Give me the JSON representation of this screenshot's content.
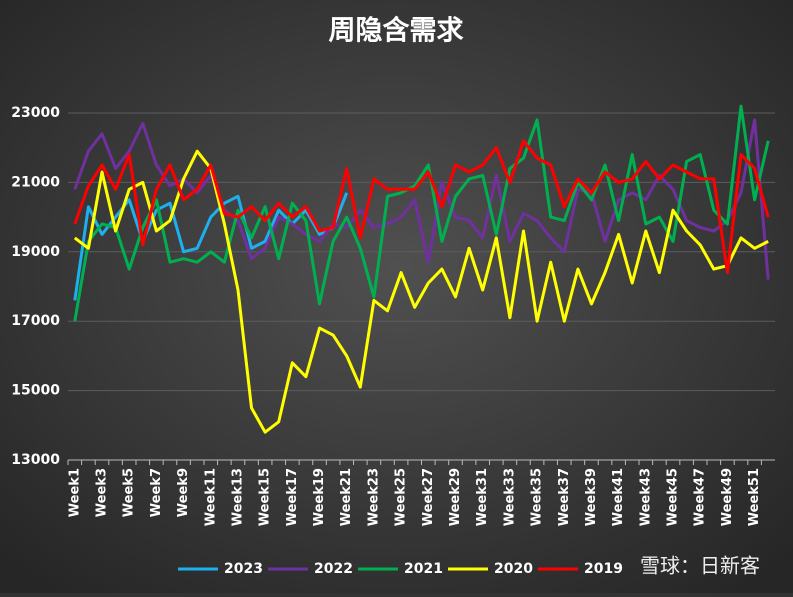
{
  "chart_data": {
    "type": "line",
    "title": "周隐含需求",
    "watermark": "雪球：日新客",
    "categories": [
      "Week1",
      null,
      "Week3",
      null,
      "Week5",
      null,
      "Week7",
      null,
      "Week9",
      null,
      "Week11",
      null,
      "Week13",
      null,
      "Week15",
      null,
      "Week17",
      null,
      "Week19",
      null,
      "Week21",
      null,
      "Week23",
      null,
      "Week25",
      null,
      "Week27",
      null,
      "Week29",
      null,
      "Week31",
      null,
      "Week33",
      null,
      "Week35",
      null,
      "Week37",
      null,
      "Week39",
      null,
      "Week41",
      null,
      "Week43",
      null,
      "Week45",
      null,
      "Week47",
      null,
      "Week49",
      null,
      "Week51",
      null
    ],
    "ylim": [
      13000,
      23500
    ],
    "yticks": [
      13000,
      15000,
      17000,
      19000,
      21000,
      23000
    ],
    "grid": true,
    "series": [
      {
        "name": "2023",
        "color": "#1cb0ee",
        "values": [
          17600,
          20300,
          19500,
          20000,
          20500,
          19300,
          20200,
          20400,
          19000,
          19100,
          20000,
          20400,
          20600,
          19100,
          19300,
          20200,
          19800,
          20200,
          19500,
          19700,
          20700,
          null,
          null,
          null,
          null,
          null,
          null,
          null,
          null,
          null,
          null,
          null,
          null,
          null,
          null,
          null,
          null,
          null,
          null,
          null,
          null,
          null,
          null,
          null,
          null,
          null,
          null,
          null,
          null,
          null,
          null,
          null
        ]
      },
      {
        "name": "2022",
        "color": "#7030a0",
        "values": [
          20800,
          21900,
          22400,
          21400,
          21900,
          22700,
          21500,
          20900,
          21100,
          20700,
          21200,
          20200,
          19900,
          18800,
          19100,
          20000,
          19800,
          19500,
          19300,
          19800,
          19700,
          20200,
          19700,
          19800,
          20000,
          20500,
          18700,
          21000,
          20000,
          19900,
          19400,
          21200,
          19300,
          20100,
          19900,
          19400,
          19000,
          20800,
          20700,
          19300,
          20500,
          20700,
          20500,
          21200,
          20800,
          19900,
          19700,
          19600,
          19900,
          20700,
          22800,
          18200
        ]
      },
      {
        "name": "2021",
        "color": "#00b050",
        "values": [
          17000,
          19300,
          19800,
          19700,
          18500,
          19700,
          20500,
          18700,
          18800,
          18700,
          19000,
          18700,
          20200,
          19400,
          20300,
          18800,
          20400,
          19900,
          17500,
          19300,
          20000,
          19100,
          17700,
          20600,
          20700,
          20900,
          21500,
          19300,
          20600,
          21100,
          21200,
          19500,
          21400,
          21700,
          22800,
          20000,
          19900,
          21000,
          20500,
          21500,
          19900,
          21800,
          19800,
          20000,
          19300,
          21600,
          21800,
          20200,
          19800,
          23200,
          20500,
          22200
        ]
      },
      {
        "name": "2020",
        "color": "#ffff00",
        "values": [
          19400,
          19100,
          21300,
          19600,
          20800,
          21000,
          19600,
          19900,
          21100,
          21900,
          21400,
          19800,
          17900,
          14500,
          13800,
          14100,
          15800,
          15400,
          16800,
          16600,
          16000,
          15100,
          17600,
          17300,
          18400,
          17400,
          18100,
          18500,
          17700,
          19100,
          17900,
          19400,
          17100,
          19600,
          17000,
          18700,
          17000,
          18500,
          17500,
          18400,
          19500,
          18100,
          19600,
          18400,
          20200,
          19600,
          19200,
          18500,
          18600,
          19400,
          19100,
          19300
        ]
      },
      {
        "name": "2019",
        "color": "#ff0000",
        "values": [
          19800,
          20900,
          21500,
          20800,
          21800,
          19200,
          20800,
          21500,
          20500,
          20800,
          21500,
          20100,
          20000,
          20300,
          19900,
          20400,
          20000,
          20300,
          19600,
          19700,
          21400,
          19400,
          21100,
          20800,
          20800,
          20800,
          21300,
          20300,
          21500,
          21300,
          21500,
          22000,
          21000,
          22200,
          21700,
          21500,
          20300,
          21100,
          20700,
          21300,
          21000,
          21100,
          21600,
          21100,
          21500,
          21300,
          21100,
          21100,
          18400,
          21800,
          21400,
          20000
        ]
      }
    ]
  }
}
